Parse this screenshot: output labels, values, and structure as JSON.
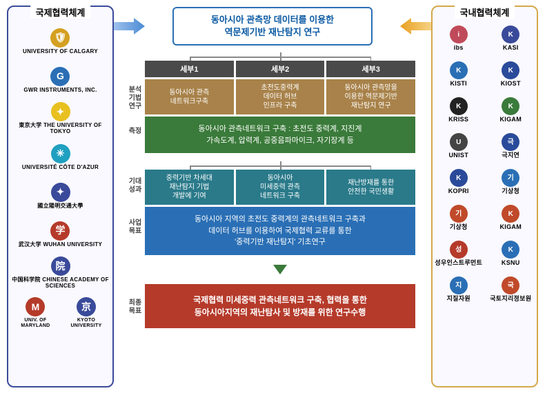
{
  "panels": {
    "left_title": "국제협력체계",
    "right_title": "국내협력체계"
  },
  "intl_partners": [
    {
      "name": "UNIVERSITY OF CALGARY",
      "color": "#d4a021",
      "glyph": "🛡"
    },
    {
      "name": "GWR INSTRUMENTS, INC.",
      "color": "#2a6fb5",
      "glyph": "G"
    },
    {
      "name": "東京大学 THE UNIVERSITY OF TOKYO",
      "color": "#e8c020",
      "glyph": "✦"
    },
    {
      "name": "UNIVERSITÉ CÔTE D'AZUR",
      "color": "#20a0c0",
      "glyph": "✳"
    },
    {
      "name": "國立陽明交通大學",
      "color": "#3a4a9a",
      "glyph": "✦"
    },
    {
      "name": "武汉大学 WUHAN UNIVERSITY",
      "color": "#b53a2a",
      "glyph": "学"
    },
    {
      "name": "中国科学院 CHINESE ACADEMY OF SCIENCES",
      "color": "#3a4a9a",
      "glyph": "院"
    },
    {
      "name": "UNIV. OF MARYLAND",
      "color": "#b53a2a",
      "glyph": "M"
    },
    {
      "name": "KYOTO UNIVERSITY",
      "color": "#3a4a9a",
      "glyph": "京"
    }
  ],
  "domestic_partners": [
    {
      "name": "ibs",
      "color": "#c04a5a"
    },
    {
      "name": "KASI",
      "color": "#3a4a9a"
    },
    {
      "name": "KISTI",
      "color": "#2a6fb5"
    },
    {
      "name": "KIOST",
      "color": "#2a4a9a"
    },
    {
      "name": "KRISS",
      "color": "#222"
    },
    {
      "name": "KIGAM",
      "color": "#3a7a3a"
    },
    {
      "name": "UNIST",
      "color": "#444"
    },
    {
      "name": "극지연",
      "color": "#2a4a9a"
    },
    {
      "name": "KOPRI",
      "color": "#2a4a9a"
    },
    {
      "name": "기상청",
      "color": "#2a6fb5"
    },
    {
      "name": "기상청",
      "color": "#c04a2a"
    },
    {
      "name": "KIGAM",
      "color": "#c04a2a"
    },
    {
      "name": "성우인스트루먼트",
      "color": "#b53a2a"
    },
    {
      "name": "KSNU",
      "color": "#2a6fb5"
    },
    {
      "name": "지질자원",
      "color": "#2a6fb5"
    },
    {
      "name": "국토지리정보원",
      "color": "#c04a2a"
    }
  ],
  "title_box": "동아시아 관측망 데이터를 이용한\n역문제기반 재난탐지 연구",
  "row_labels": {
    "analysis": "분석기법\n연구",
    "measure": "측정",
    "expect": "기대\n성과",
    "objective": "사업\n목표",
    "final": "최종\n목표"
  },
  "sebu_headers": [
    "세부1",
    "세부2",
    "세부3"
  ],
  "brown_cells": [
    "동아시아 관측\n네트워크구축",
    "초전도중력계\n데이터 허브\n인프라 구축",
    "동아시아 관측망을\n이용한 역문제기반\n재난탐지 연구"
  ],
  "green_box": "동아시아 관측네트워크 구축 : 초전도 중력계, 지진계\n가속도계, 압력계, 공중음파마이크, 자기장계 등",
  "teal_cells": [
    "중력기반 차세대\n재난탐지 기법\n개발에 기여",
    "동아시아\n미세중력 관측\n네트워크 구축",
    "재난방재를 통한\n안전한 국민생활"
  ],
  "blue_box": "동아시아 지역의 초전도 중력계의 관측네트워크 구축과\n데이터 허브를 이용하여 국제협력 교류를 통한\n'중력기반 재난탐지' 기초연구",
  "red_box": "국제협력 미세중력 관측네트워크 구축, 협력을 통한\n동아시아지역의 재난탐사 및 방재를 위한 연구수행",
  "colors": {
    "title_border": "#2a6fb5",
    "title_text": "#0b5aa3",
    "sebu_bg": "#4a4a4a",
    "brown_bg": "#a8824a",
    "green_bg": "#3a7a3a",
    "teal_bg": "#2a7a8a",
    "blue_bg": "#2a6fb5",
    "red_bg": "#b53a2a",
    "arrow_blue": "#4a8ad4",
    "arrow_orange": "#e8a020"
  }
}
